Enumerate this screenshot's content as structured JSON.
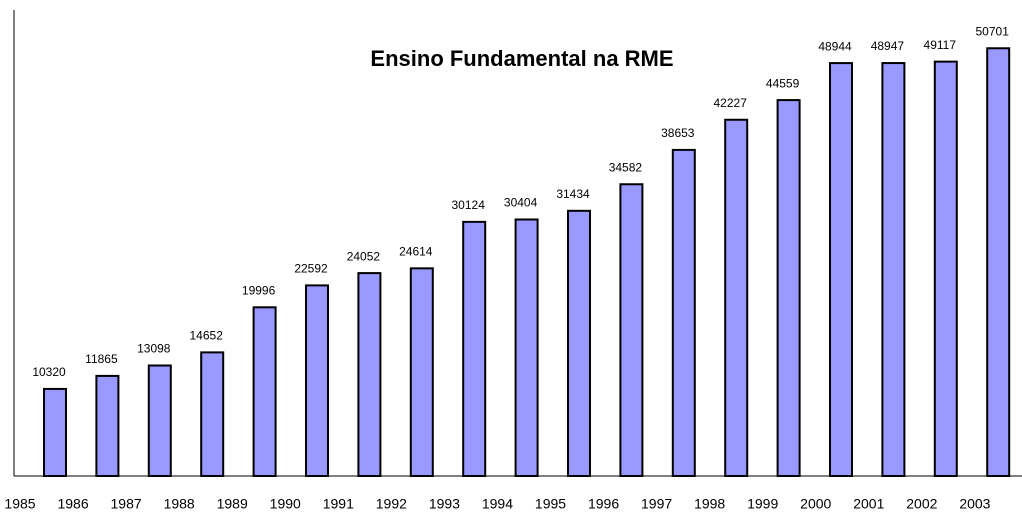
{
  "chart_data": {
    "type": "bar",
    "title": "Ensino Fundamental na RME",
    "categories": [
      "1985",
      "1986",
      "1987",
      "1988",
      "1989",
      "1990",
      "1991",
      "1992",
      "1993",
      "1994",
      "1995",
      "1996",
      "1997",
      "1998",
      "1999",
      "2000",
      "2001",
      "2002",
      "2003"
    ],
    "values": [
      10320,
      11865,
      13098,
      14652,
      19996,
      22592,
      24052,
      24614,
      30124,
      30404,
      31434,
      34582,
      38653,
      42227,
      44559,
      48944,
      48947,
      49117,
      50701
    ],
    "color": "#9999ff",
    "ylim": [
      0,
      55000
    ],
    "grid": false
  }
}
